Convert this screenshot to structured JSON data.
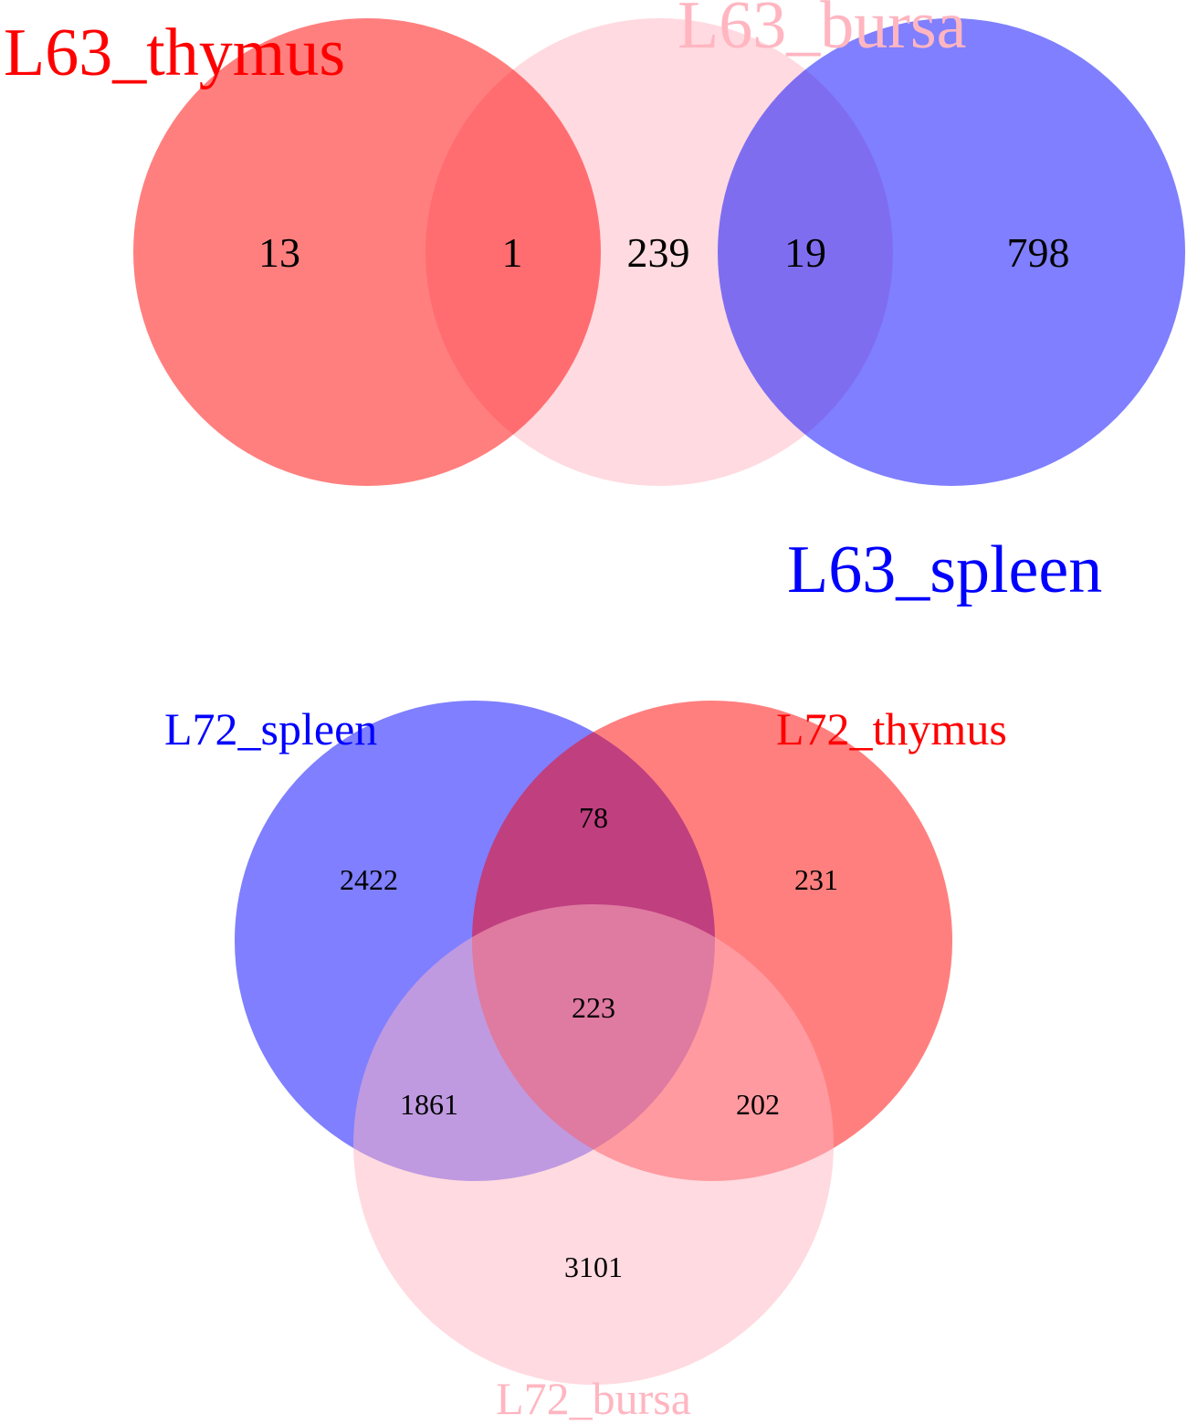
{
  "colors": {
    "thymus": "#ff0000",
    "bursa": "#ffb6c1",
    "spleen": "#0000ff",
    "thymus_label": "#ff0000",
    "bursa_label": "#ffb6c1",
    "spleen_label": "#0000ff",
    "count_text": "#000000"
  },
  "diagram_top": {
    "sets": {
      "thymus": "L63_thymus",
      "bursa": "L63_bursa",
      "spleen": "L63_spleen"
    },
    "counts": {
      "thymus_only": "13",
      "thymus_bursa": "1",
      "bursa_only": "239",
      "bursa_spleen": "19",
      "spleen_only": "798"
    }
  },
  "diagram_bottom": {
    "sets": {
      "spleen": "L72_spleen",
      "thymus": "L72_thymus",
      "bursa": "L72_bursa"
    },
    "counts": {
      "spleen_only": "2422",
      "spleen_thymus": "78",
      "thymus_only": "231",
      "all_three": "223",
      "spleen_bursa": "1861",
      "thymus_bursa": "202",
      "bursa_only": "3101"
    }
  }
}
